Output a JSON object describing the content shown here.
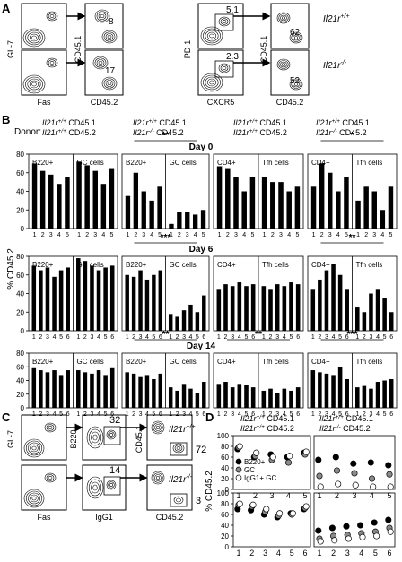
{
  "panel_letters": [
    "A",
    "B",
    "C",
    "D"
  ],
  "panel_a": {
    "left_axes": {
      "y": "GL-7",
      "x": "Fas",
      "mid_y": "CD45.1",
      "mid_x": "CD45.2"
    },
    "right_axes": {
      "y": "PD-1",
      "x": "CXCR5",
      "mid_y": "CD45.1",
      "mid_x": "CD45.2"
    },
    "left_values": [
      "8",
      "17"
    ],
    "gate_values": [
      "5.1",
      "2.3"
    ],
    "right_values": [
      "62",
      "52"
    ],
    "genotypes": [
      "Il21r+/+",
      "Il21r-/-"
    ]
  },
  "panel_b": {
    "donor_label": "Donor:",
    "donor_groups": [
      [
        "Il21r+/+ CD45.1",
        "Il21r+/+ CD45.2"
      ],
      [
        "Il21r+/+ CD45.1",
        "Il21r-/- CD45.2"
      ],
      [
        "Il21r+/+ CD45.1",
        "Il21r+/+ CD45.2"
      ],
      [
        "Il21r+/+ CD45.1",
        "Il21r-/- CD45.2"
      ]
    ],
    "ylabel": "% CD45.2",
    "days": [
      "Day 0",
      "Day 6",
      "Day 14"
    ],
    "subset_labels": [
      "B220+",
      "GC cells",
      "CD4+",
      "Tfh cells"
    ],
    "significance": [
      [
        "**",
        "*"
      ],
      [
        "***",
        "**"
      ],
      [
        "**",
        "**",
        "***"
      ]
    ],
    "y_ticks": [
      "0",
      "20",
      "40",
      "60",
      "80"
    ],
    "x_ticks_5": [
      "1",
      "2",
      "3",
      "4",
      "5"
    ],
    "x_ticks_6": [
      "1",
      "2",
      "3",
      "4",
      "5",
      "6"
    ]
  },
  "chart_data": [
    {
      "type": "bar",
      "title": "Day 0",
      "ylabel": "% CD45.2",
      "ylim": [
        0,
        80
      ],
      "panels": [
        {
          "donor": "Il21r+/+ CD45.1 / Il21r+/+ CD45.2",
          "subsets": [
            {
              "name": "B220+",
              "x": [
                1,
                2,
                3,
                4,
                5
              ],
              "values": [
                70,
                62,
                58,
                48,
                55
              ]
            },
            {
              "name": "GC cells",
              "x": [
                1,
                2,
                3,
                4,
                5
              ],
              "values": [
                72,
                68,
                62,
                48,
                65
              ]
            }
          ]
        },
        {
          "donor": "Il21r+/+ CD45.1 / Il21r-/- CD45.2",
          "subsets": [
            {
              "name": "B220+",
              "x": [
                1,
                2,
                3,
                4,
                5
              ],
              "values": [
                35,
                60,
                40,
                30,
                45
              ]
            },
            {
              "name": "GC cells",
              "x": [
                1,
                2,
                3,
                4,
                5
              ],
              "values": [
                5,
                18,
                18,
                15,
                20
              ]
            }
          ]
        },
        {
          "donor": "Il21r+/+ CD45.1 / Il21r+/+ CD45.2",
          "subsets": [
            {
              "name": "CD4+",
              "x": [
                1,
                2,
                3,
                4,
                5
              ],
              "values": [
                67,
                65,
                55,
                40,
                55
              ]
            },
            {
              "name": "Tfh cells",
              "x": [
                1,
                2,
                3,
                4,
                5
              ],
              "values": [
                55,
                50,
                50,
                40,
                45
              ]
            }
          ]
        },
        {
          "donor": "Il21r+/+ CD45.1 / Il21r-/- CD45.2",
          "subsets": [
            {
              "name": "CD4+",
              "x": [
                1,
                2,
                3,
                4,
                5
              ],
              "values": [
                45,
                70,
                60,
                40,
                55
              ]
            },
            {
              "name": "Tfh cells",
              "x": [
                1,
                2,
                3,
                4,
                5
              ],
              "values": [
                30,
                45,
                40,
                20,
                45
              ]
            }
          ]
        }
      ]
    },
    {
      "type": "bar",
      "title": "Day 6",
      "ylabel": "% CD45.2",
      "ylim": [
        0,
        80
      ],
      "panels": [
        {
          "donor": "Il21r+/+ CD45.1 / Il21r+/+ CD45.2",
          "subsets": [
            {
              "name": "B220+",
              "x": [
                1,
                2,
                3,
                4,
                5,
                6
              ],
              "values": [
                70,
                65,
                68,
                58,
                65,
                68
              ]
            },
            {
              "name": "GC cells",
              "x": [
                1,
                2,
                3,
                4,
                5,
                6
              ],
              "values": [
                78,
                75,
                70,
                65,
                68,
                70
              ]
            }
          ]
        },
        {
          "donor": "Il21r+/+ CD45.1 / Il21r-/- CD45.2",
          "subsets": [
            {
              "name": "B220+",
              "x": [
                1,
                2,
                3,
                4,
                5,
                6
              ],
              "values": [
                60,
                58,
                65,
                55,
                60,
                65
              ]
            },
            {
              "name": "GC cells",
              "x": [
                1,
                2,
                3,
                4,
                5,
                6
              ],
              "values": [
                18,
                15,
                22,
                28,
                20,
                38
              ]
            }
          ]
        },
        {
          "donor": "Il21r+/+ CD45.1 / Il21r+/+ CD45.2",
          "subsets": [
            {
              "name": "CD4+",
              "x": [
                1,
                2,
                3,
                4,
                5,
                6
              ],
              "values": [
                45,
                50,
                48,
                52,
                48,
                50
              ]
            },
            {
              "name": "Tfh cells",
              "x": [
                1,
                2,
                3,
                4,
                5,
                6
              ],
              "values": [
                48,
                45,
                50,
                48,
                52,
                50
              ]
            }
          ]
        },
        {
          "donor": "Il21r+/+ CD45.1 / Il21r-/- CD45.2",
          "subsets": [
            {
              "name": "CD4+",
              "x": [
                1,
                2,
                3,
                4,
                5,
                6
              ],
              "values": [
                45,
                55,
                65,
                72,
                60,
                45
              ]
            },
            {
              "name": "Tfh cells",
              "x": [
                1,
                2,
                3,
                4,
                5,
                6
              ],
              "values": [
                25,
                20,
                40,
                45,
                35,
                20
              ]
            }
          ]
        }
      ]
    },
    {
      "type": "bar",
      "title": "Day 14",
      "ylabel": "% CD45.2",
      "ylim": [
        0,
        80
      ],
      "panels": [
        {
          "donor": "Il21r+/+ CD45.1 / Il21r+/+ CD45.2",
          "subsets": [
            {
              "name": "B220+",
              "x": [
                1,
                2,
                3,
                4,
                5,
                6
              ],
              "values": [
                58,
                55,
                52,
                55,
                48,
                55
              ]
            },
            {
              "name": "GC cells",
              "x": [
                1,
                2,
                3,
                4,
                5,
                6
              ],
              "values": [
                55,
                52,
                50,
                55,
                48,
                58
              ]
            }
          ]
        },
        {
          "donor": "Il21r+/+ CD45.1 / Il21r-/- CD45.2",
          "subsets": [
            {
              "name": "B220+",
              "x": [
                1,
                2,
                3,
                4,
                5,
                6
              ],
              "values": [
                52,
                50,
                45,
                48,
                42,
                50
              ]
            },
            {
              "name": "GC cells",
              "x": [
                1,
                2,
                3,
                4,
                5,
                6
              ],
              "values": [
                30,
                25,
                35,
                28,
                22,
                38
              ]
            }
          ]
        },
        {
          "donor": "Il21r+/+ CD45.1 / Il21r+/+ CD45.2",
          "subsets": [
            {
              "name": "CD4+",
              "x": [
                1,
                2,
                3,
                4,
                5,
                6
              ],
              "values": [
                35,
                38,
                30,
                35,
                33,
                30
              ]
            },
            {
              "name": "Tfh cells",
              "x": [
                1,
                2,
                3,
                4,
                5,
                6
              ],
              "values": [
                25,
                28,
                22,
                28,
                25,
                30
              ]
            }
          ]
        },
        {
          "donor": "Il21r+/+ CD45.1 / Il21r-/- CD45.2",
          "subsets": [
            {
              "name": "CD4+",
              "x": [
                1,
                2,
                3,
                4,
                5,
                6
              ],
              "values": [
                55,
                52,
                50,
                48,
                60,
                42
              ]
            },
            {
              "name": "Tfh cells",
              "x": [
                1,
                2,
                3,
                4,
                5,
                6
              ],
              "values": [
                30,
                32,
                28,
                38,
                40,
                42
              ]
            }
          ]
        }
      ]
    },
    {
      "type": "scatter",
      "ylabel": "% CD45.2",
      "ylim": [
        0,
        100
      ],
      "ticks": [
        "0",
        "20",
        "40",
        "60",
        "80",
        "100"
      ],
      "legend": [
        "B220+",
        "GC",
        "IgG1+ GC"
      ],
      "legend_colors": [
        "#000000",
        "#8a8a8a",
        "#ffffff"
      ],
      "headers": [
        [
          "Il21r+/+ CD45.1",
          "Il21r+/+ CD45.2"
        ],
        [
          "Il21r+/+ CD45.1",
          "Il21r-/- CD45.2"
        ]
      ],
      "plots": [
        {
          "x": [
            1,
            2,
            3,
            4,
            5
          ],
          "series": [
            {
              "name": "B220+",
              "values": [
                75,
                60,
                65,
                60,
                68
              ]
            },
            {
              "name": "GC",
              "values": [
                78,
                62,
                55,
                50,
                65
              ]
            },
            {
              "name": "IgG1+ GC",
              "values": [
                80,
                68,
                60,
                62,
                70
              ]
            }
          ]
        },
        {
          "x": [
            1,
            2,
            3,
            4,
            5
          ],
          "series": [
            {
              "name": "B220+",
              "values": [
                55,
                60,
                48,
                50,
                45
              ]
            },
            {
              "name": "GC",
              "values": [
                25,
                35,
                30,
                20,
                28
              ]
            },
            {
              "name": "IgG1+ GC",
              "values": [
                5,
                10,
                8,
                5,
                5
              ]
            }
          ]
        },
        {
          "x": [
            1,
            2,
            3,
            4,
            5,
            6
          ],
          "series": [
            {
              "name": "B220+",
              "values": [
                70,
                68,
                60,
                55,
                62,
                70
              ]
            },
            {
              "name": "GC",
              "values": [
                78,
                75,
                65,
                58,
                60,
                72
              ]
            },
            {
              "name": "IgG1+ GC",
              "values": [
                80,
                78,
                70,
                62,
                62,
                75
              ]
            }
          ]
        },
        {
          "x": [
            1,
            2,
            3,
            4,
            5,
            6
          ],
          "series": [
            {
              "name": "B220+",
              "values": [
                30,
                35,
                38,
                40,
                45,
                50
              ]
            },
            {
              "name": "GC",
              "values": [
                15,
                20,
                22,
                25,
                28,
                35
              ]
            },
            {
              "name": "IgG1+ GC",
              "values": [
                10,
                12,
                15,
                18,
                20,
                28
              ]
            }
          ]
        }
      ]
    }
  ],
  "panel_c": {
    "axes": {
      "y1": "GL-7",
      "x1": "Fas",
      "y2": "B220",
      "x2": "IgG1",
      "y3": "CD45.1",
      "x3": "CD45.2"
    },
    "gate_values": [
      "32",
      "14"
    ],
    "right_values": [
      "72",
      "3"
    ],
    "genotypes": [
      "Il21r+/+",
      "Il21r-/-"
    ]
  }
}
